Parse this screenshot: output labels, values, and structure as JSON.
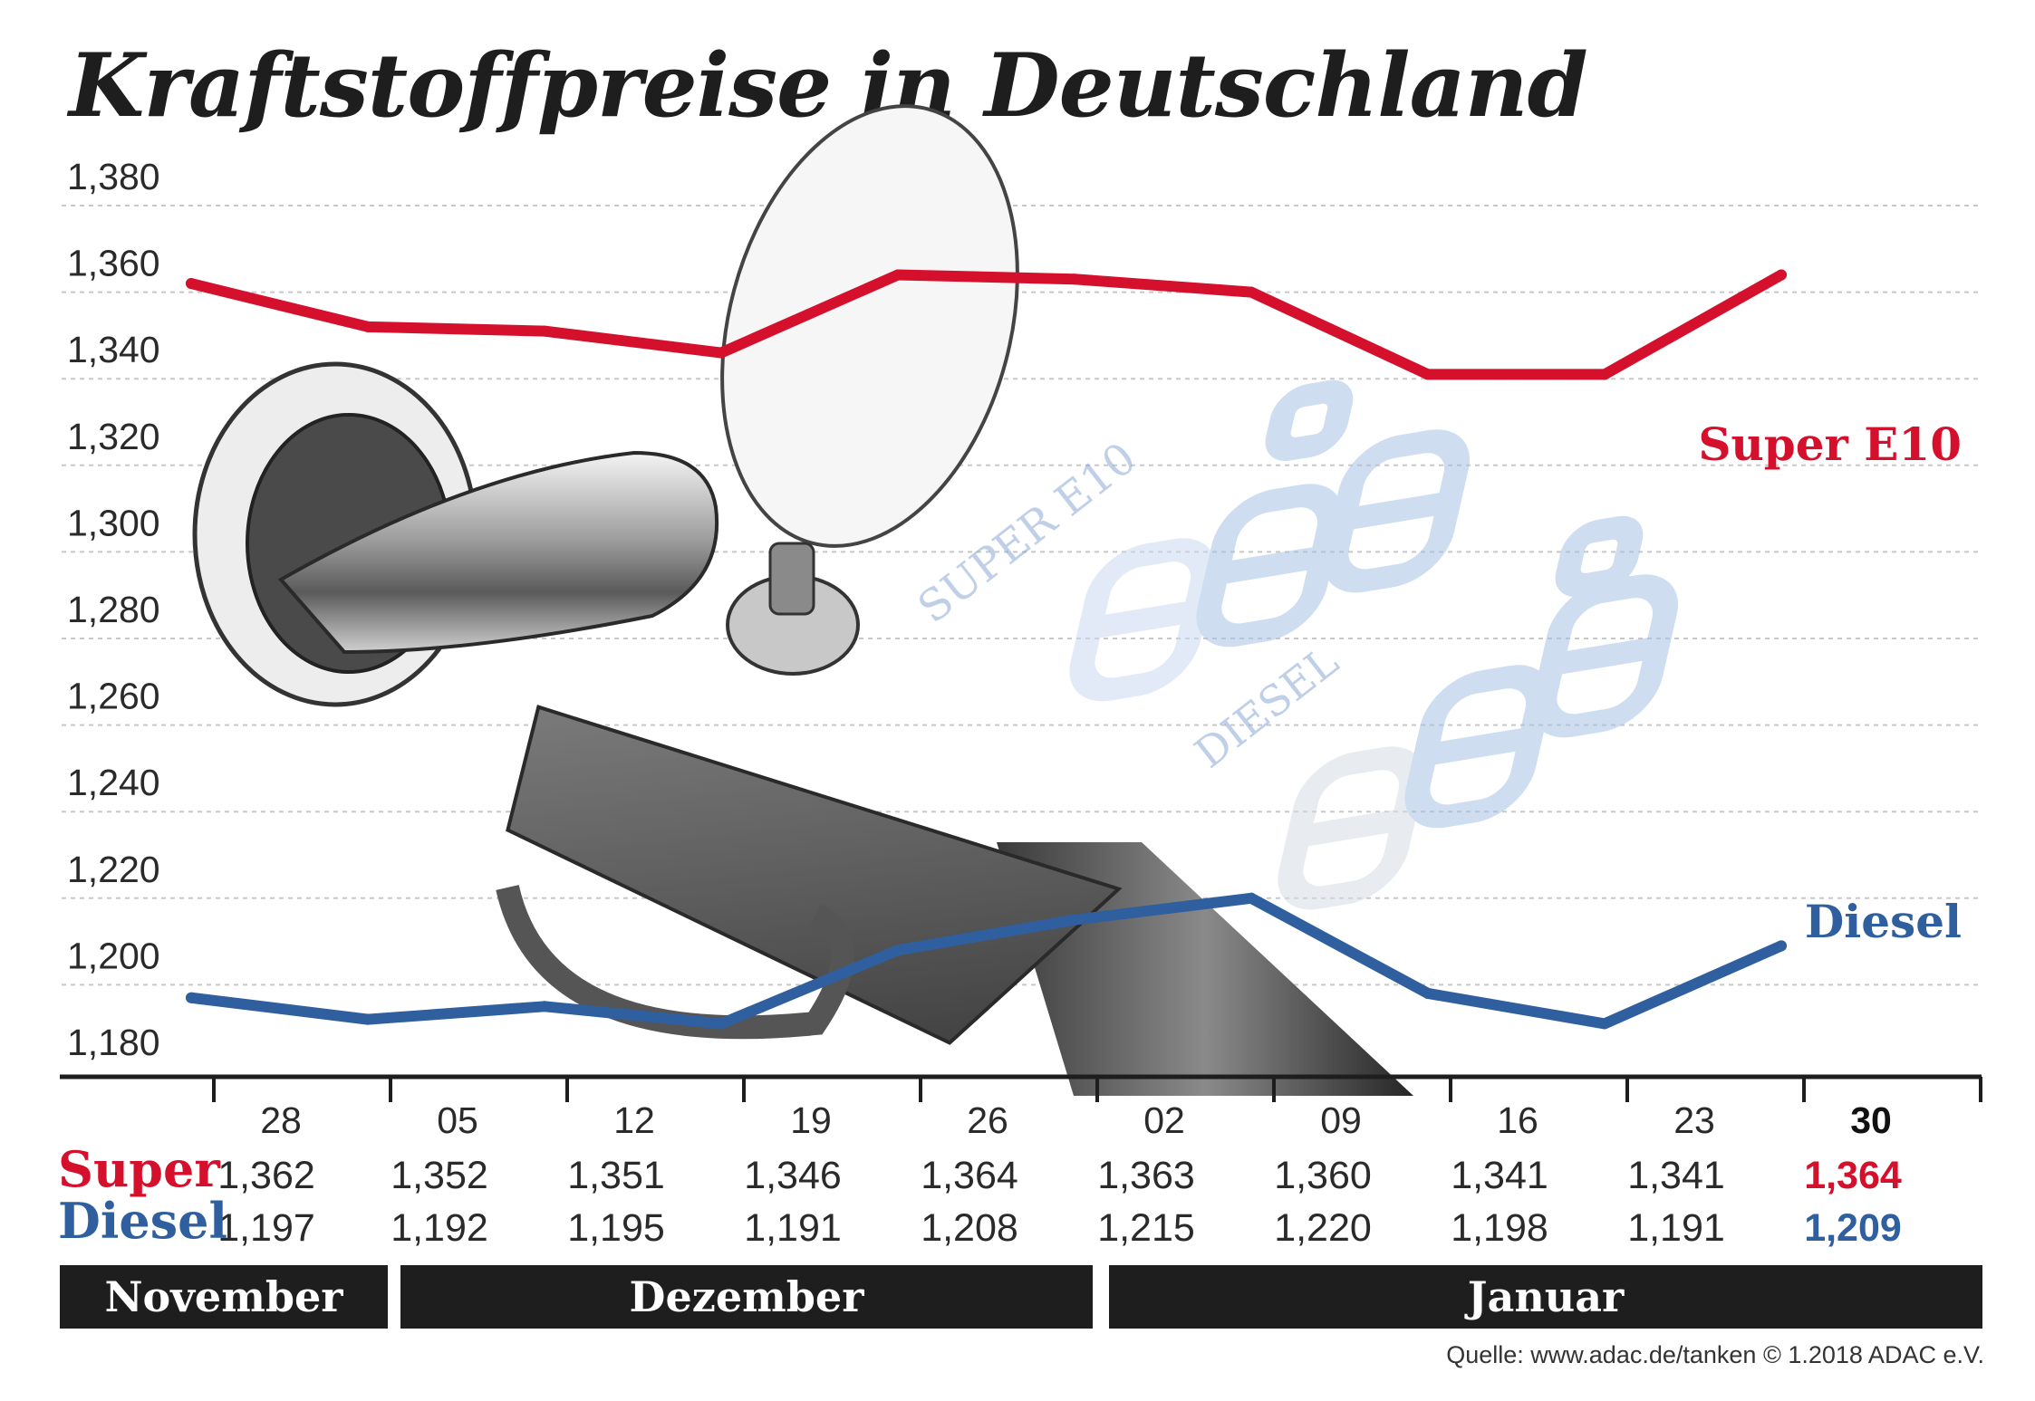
{
  "title": "Kraftstoffpreise in Deutschland",
  "colors": {
    "super": "#d5102c",
    "diesel": "#2f5f9e",
    "grid": "#c8c8c8",
    "text": "#2a2a2a",
    "band": "#1e1e1e"
  },
  "chart_data": {
    "type": "line",
    "title": "Kraftstoffpreise in Deutschland",
    "categories": [
      "28",
      "05",
      "12",
      "19",
      "26",
      "02",
      "09",
      "16",
      "23",
      "30"
    ],
    "y_ticks": [
      "1,380",
      "1,360",
      "1,340",
      "1,320",
      "1,300",
      "1,280",
      "1,260",
      "1,240",
      "1,220",
      "1,200",
      "1,180"
    ],
    "ylim": [
      1.18,
      1.38
    ],
    "grid": true,
    "series": [
      {
        "name": "Super E10",
        "color": "#d5102c",
        "values": [
          1.362,
          1.352,
          1.351,
          1.346,
          1.364,
          1.363,
          1.36,
          1.341,
          1.341,
          1.364
        ]
      },
      {
        "name": "Diesel",
        "color": "#2f5f9e",
        "values": [
          1.197,
          1.192,
          1.195,
          1.191,
          1.208,
          1.215,
          1.22,
          1.198,
          1.191,
          1.209
        ]
      }
    ]
  },
  "table": {
    "super_label": "Super",
    "diesel_label": "Diesel",
    "super_values": [
      "1,362",
      "1,352",
      "1,351",
      "1,346",
      "1,364",
      "1,363",
      "1,360",
      "1,341",
      "1,341",
      "1,364"
    ],
    "diesel_values": [
      "1,197",
      "1,192",
      "1,195",
      "1,191",
      "1,208",
      "1,215",
      "1,220",
      "1,198",
      "1,191",
      "1,209"
    ]
  },
  "months": [
    "November",
    "Dezember",
    "Januar"
  ],
  "illustration": {
    "display_super": "SUPER E10",
    "display_diesel": "DIESEL"
  },
  "source": "Quelle: www.adac.de/tanken   © 1.2018  ADAC e.V."
}
